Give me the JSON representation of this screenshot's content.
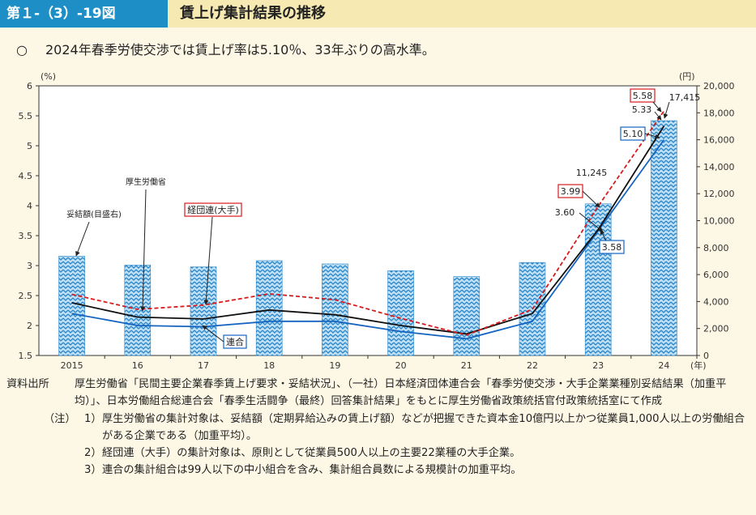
{
  "header": {
    "figure_number": "第１-（3）-19図",
    "title": "賃上げ集計結果の推移"
  },
  "summary": {
    "bullet": "○",
    "text": "2024年春季労使交渉では賃上げ率は5.10％、33年ぶりの高水準。"
  },
  "chart_data": {
    "type": "bar+line",
    "left_axis_unit": "(%)",
    "right_axis_unit": "(円)",
    "x_unit": "(年)",
    "ylim_left": [
      1.5,
      6
    ],
    "ylim_right": [
      0,
      20000
    ],
    "left_ticks": [
      "1.5",
      "2",
      "2.5",
      "3",
      "3.5",
      "4",
      "4.5",
      "5",
      "5.5",
      "6"
    ],
    "right_ticks": [
      "0",
      "2,000",
      "4,000",
      "6,000",
      "8,000",
      "10,000",
      "12,000",
      "14,000",
      "16,000",
      "18,000",
      "20,000"
    ],
    "categories": [
      "2015",
      "16",
      "17",
      "18",
      "19",
      "20",
      "21",
      "22",
      "23",
      "24"
    ],
    "bars": {
      "name": "妥結額(目盛右)",
      "values": [
        7367,
        6711,
        6570,
        7033,
        6790,
        6286,
        5854,
        6898,
        11245,
        17415
      ]
    },
    "series": [
      {
        "name": "厚生労働省",
        "style": "solid",
        "color": "#111111",
        "values": [
          2.38,
          2.14,
          2.11,
          2.26,
          2.18,
          2.0,
          1.86,
          2.2,
          3.6,
          5.33
        ]
      },
      {
        "name": "経団連(大手)",
        "style": "dashed",
        "color": "#d81b1b",
        "values": [
          2.52,
          2.27,
          2.34,
          2.53,
          2.43,
          2.12,
          1.84,
          2.27,
          3.99,
          5.58
        ]
      },
      {
        "name": "連合",
        "style": "solid",
        "color": "#1565c0",
        "values": [
          2.2,
          2.0,
          1.98,
          2.07,
          2.07,
          1.9,
          1.78,
          2.07,
          3.58,
          5.1
        ]
      }
    ],
    "annotations": {
      "bar_2023": "11,245",
      "bar_2024": "17,415",
      "mhlw_2023": "3.60",
      "mhlw_2024": "5.33",
      "keidanren_2023": "3.99",
      "keidanren_2024": "5.58",
      "rengo_2023": "3.58",
      "rengo_2024": "5.10"
    },
    "bar_color": "#2a86c8"
  },
  "source": {
    "label": "資料出所",
    "text": "厚生労働省「民間主要企業春季賃上げ要求・妥結状況」、（一社）日本経済団体連合会「春季労使交渉・大手企業業種別妥結結果（加重平均）」、日本労働組合総連合会「春季生活闘争（最終）回答集計結果」をもとに厚生労働省政策統括官付政策統括室にて作成"
  },
  "notes": {
    "label": "（注）",
    "items": [
      {
        "num": "1）",
        "text": "厚生労働省の集計対象は、妥結額（定期昇給込みの賃上げ額）などが把握できた資本金10億円以上かつ従業員1,000人以上の労働組合がある企業である（加重平均）。"
      },
      {
        "num": "2）",
        "text": "経団連（大手）の集計対象は、原則として従業員500人以上の主要22業種の大手企業。"
      },
      {
        "num": "3）",
        "text": "連合の集計組合は99人以下の中小組合を含み、集計組合員数による規模計の加重平均。"
      }
    ]
  }
}
